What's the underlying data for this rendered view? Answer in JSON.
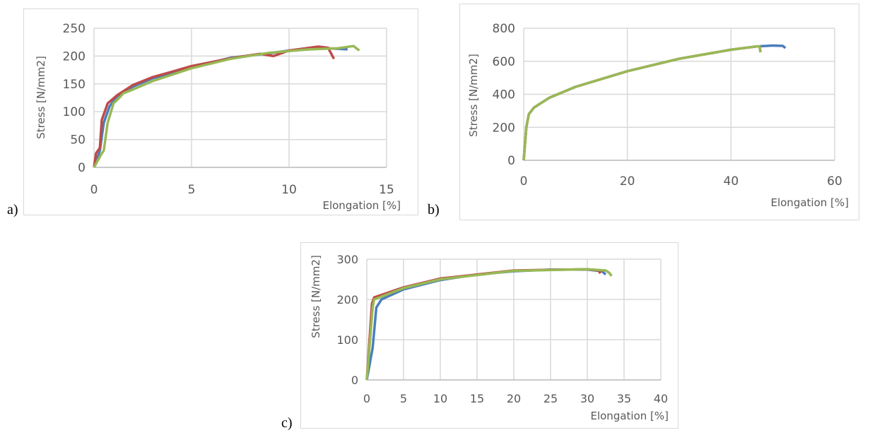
{
  "colors": {
    "blue": "#4a7ebb",
    "red": "#be4b48",
    "green": "#98b954",
    "grid": "#d9d9d9"
  },
  "chart_data": [
    {
      "id": "a",
      "panel_label": "a)",
      "type": "line",
      "xlabel": "Elongation [%]",
      "ylabel": "Stress [N/mm2]",
      "xlim": [
        0,
        15
      ],
      "ylim": [
        0,
        250
      ],
      "xticks": [
        "0",
        "5",
        "10",
        "15"
      ],
      "yticks": [
        "0",
        "50",
        "100",
        "150",
        "200",
        "250"
      ],
      "grid": true,
      "series": [
        {
          "name": "blue",
          "color": "#4a7ebb",
          "points": [
            [
              0,
              0
            ],
            [
              0.3,
              30
            ],
            [
              0.5,
              80
            ],
            [
              0.8,
              110
            ],
            [
              1.2,
              128
            ],
            [
              2,
              145
            ],
            [
              3,
              160
            ],
            [
              5,
              180
            ],
            [
              7,
              197
            ],
            [
              9,
              205
            ],
            [
              10,
              210
            ],
            [
              12,
              214
            ],
            [
              13,
              212
            ]
          ]
        },
        {
          "name": "red",
          "color": "#be4b48",
          "points": [
            [
              0,
              0
            ],
            [
              0.1,
              25
            ],
            [
              0.3,
              35
            ],
            [
              0.4,
              85
            ],
            [
              0.7,
              115
            ],
            [
              1.2,
              130
            ],
            [
              2,
              148
            ],
            [
              3,
              162
            ],
            [
              4,
              172
            ],
            [
              5,
              182
            ],
            [
              7,
              196
            ],
            [
              8.5,
              204
            ],
            [
              9.2,
              200
            ],
            [
              10,
              210
            ],
            [
              11.5,
              217
            ],
            [
              12,
              215
            ],
            [
              12.3,
              195
            ]
          ]
        },
        {
          "name": "green",
          "color": "#98b954",
          "points": [
            [
              0,
              0
            ],
            [
              0.4,
              25
            ],
            [
              0.5,
              30
            ],
            [
              0.7,
              80
            ],
            [
              1,
              115
            ],
            [
              1.3,
              125
            ],
            [
              1.5,
              133
            ],
            [
              2,
              140
            ],
            [
              3,
              155
            ],
            [
              5,
              178
            ],
            [
              7,
              195
            ],
            [
              9,
              206
            ],
            [
              11,
              212
            ],
            [
              12.5,
              214
            ],
            [
              13.3,
              218
            ],
            [
              13.6,
              210
            ]
          ]
        }
      ]
    },
    {
      "id": "b",
      "panel_label": "b)",
      "type": "line",
      "xlabel": "Elongation [%]",
      "ylabel": "Stress [N/mm2]",
      "xlim": [
        0,
        60
      ],
      "ylim": [
        0,
        800
      ],
      "xticks": [
        "0",
        "20",
        "40",
        "60"
      ],
      "yticks": [
        "0",
        "200",
        "400",
        "600",
        "800"
      ],
      "grid": true,
      "series": [
        {
          "name": "blue",
          "color": "#4a7ebb",
          "points": [
            [
              0,
              0
            ],
            [
              0.5,
              200
            ],
            [
              1,
              280
            ],
            [
              2,
              320
            ],
            [
              5,
              380
            ],
            [
              10,
              445
            ],
            [
              20,
              540
            ],
            [
              30,
              615
            ],
            [
              40,
              670
            ],
            [
              45,
              690
            ],
            [
              48,
              695
            ],
            [
              50,
              693
            ],
            [
              50.5,
              680
            ]
          ]
        },
        {
          "name": "red",
          "color": "#be4b48",
          "points": [
            [
              0,
              0
            ],
            [
              0.5,
              200
            ],
            [
              1,
              280
            ],
            [
              2,
              320
            ],
            [
              5,
              380
            ],
            [
              10,
              445
            ],
            [
              20,
              540
            ],
            [
              30,
              615
            ],
            [
              40,
              670
            ],
            [
              45,
              690
            ],
            [
              45.5,
              690
            ],
            [
              45.7,
              655
            ]
          ]
        },
        {
          "name": "green",
          "color": "#98b954",
          "points": [
            [
              0,
              0
            ],
            [
              0.5,
              200
            ],
            [
              1,
              280
            ],
            [
              2,
              320
            ],
            [
              5,
              380
            ],
            [
              10,
              445
            ],
            [
              20,
              540
            ],
            [
              30,
              615
            ],
            [
              40,
              670
            ],
            [
              45,
              690
            ],
            [
              45.5,
              690
            ],
            [
              45.7,
              655
            ]
          ]
        }
      ]
    },
    {
      "id": "c",
      "panel_label": "c)",
      "type": "line",
      "xlabel": "Elongation [%]",
      "ylabel": "Stress [N/mm2]",
      "xlim": [
        0,
        40
      ],
      "ylim": [
        0,
        300
      ],
      "xticks": [
        "0",
        "5",
        "10",
        "15",
        "20",
        "25",
        "30",
        "35",
        "40"
      ],
      "yticks": [
        "0",
        "100",
        "200",
        "300"
      ],
      "grid": true,
      "series": [
        {
          "name": "blue",
          "color": "#4a7ebb",
          "points": [
            [
              0,
              0
            ],
            [
              0.8,
              80
            ],
            [
              1.3,
              180
            ],
            [
              2,
              200
            ],
            [
              5,
              225
            ],
            [
              10,
              248
            ],
            [
              15,
              262
            ],
            [
              20,
              270
            ],
            [
              25,
              274
            ],
            [
              30,
              274
            ],
            [
              32,
              270
            ],
            [
              32.5,
              262
            ]
          ]
        },
        {
          "name": "red",
          "color": "#be4b48",
          "points": [
            [
              0,
              0
            ],
            [
              0.7,
              190
            ],
            [
              1,
              205
            ],
            [
              5,
              230
            ],
            [
              10,
              252
            ],
            [
              20,
              272
            ],
            [
              30,
              275
            ],
            [
              31.5,
              272
            ],
            [
              31.8,
              265
            ]
          ]
        },
        {
          "name": "green",
          "color": "#98b954",
          "points": [
            [
              0,
              0
            ],
            [
              0.8,
              180
            ],
            [
              1,
              200
            ],
            [
              5,
              228
            ],
            [
              10,
              250
            ],
            [
              20,
              271
            ],
            [
              30,
              275
            ],
            [
              32.5,
              272
            ],
            [
              33,
              266
            ],
            [
              33.3,
              258
            ]
          ]
        }
      ]
    }
  ]
}
